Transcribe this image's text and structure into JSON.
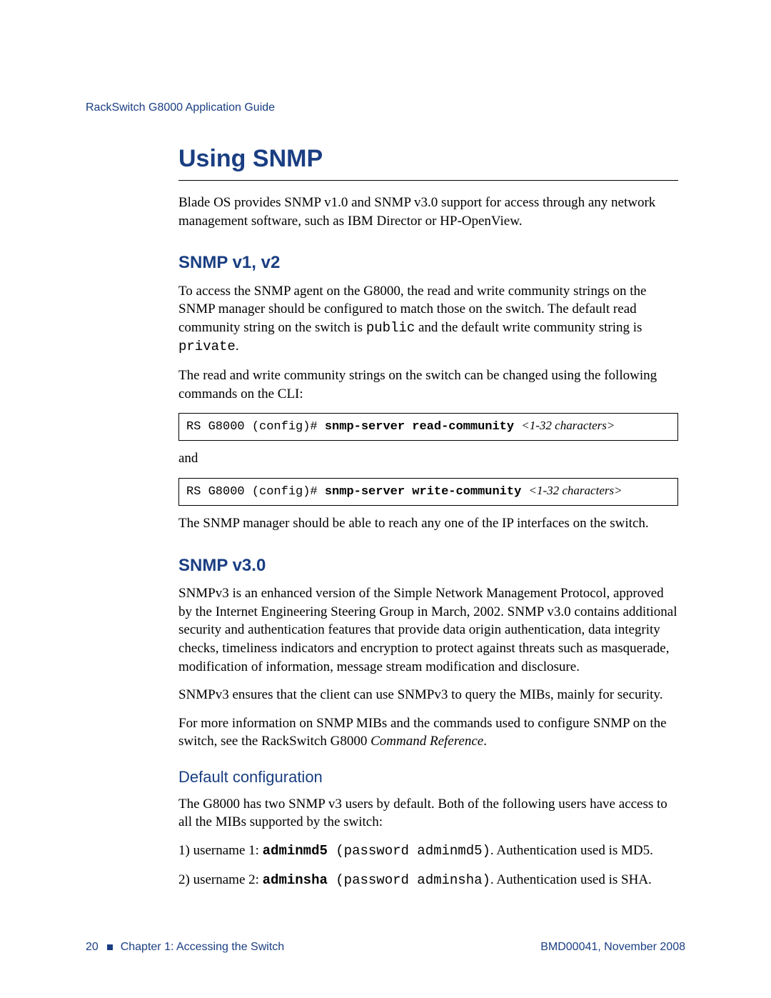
{
  "colors": {
    "brand_blue": "#1a3e82",
    "text": "#000000",
    "bg": "#ffffff",
    "rule": "#000000"
  },
  "typography": {
    "body_family": "Times New Roman",
    "heading_family": "Segoe UI / Myriad Pro",
    "mono_family": "Courier New",
    "body_size_pt": 11,
    "h1_size_pt": 20,
    "h2_size_pt": 14,
    "h3_size_pt": 13
  },
  "header": {
    "running": "RackSwitch G8000  Application Guide"
  },
  "title": "Using SNMP",
  "intro": "Blade OS provides SNMP v1.0 and SNMP v3.0 support for access through any network management software, such as IBM Director or HP-OpenView.",
  "snmp_v1v2": {
    "heading": "SNMP v1, v2",
    "p1_pre": "To access the SNMP agent on the G8000, the read and write community strings on the SNMP manager should be configured to match those on the switch. The default read community string on the switch is ",
    "p1_code1": "public",
    "p1_mid": " and the default write community string is ",
    "p1_code2": "private",
    "p1_post": ".",
    "p2": "The read and write community strings on the switch can be changed using the following commands on the CLI:",
    "code1_prompt": "RS G8000 (config)# ",
    "code1_cmd": "snmp-server read-community ",
    "code1_arg": "<1-32 characters>",
    "and": "and",
    "code2_prompt": "RS G8000 (config)# ",
    "code2_cmd": "snmp-server write-community ",
    "code2_arg": "<1-32 characters>",
    "p3": "The SNMP manager should be able to reach any one of the IP interfaces on the switch."
  },
  "snmp_v3": {
    "heading": "SNMP v3.0",
    "p1": "SNMPv3 is an enhanced version of the Simple Network Management Protocol, approved by the Internet Engineering Steering Group in March, 2002. SNMP v3.0 contains additional security and authentication features that provide data origin authentication, data integrity checks, timeliness indicators and encryption to protect against threats such as masquerade, modification of information, message stream modification and disclosure.",
    "p2": "SNMPv3 ensures that the client can use SNMPv3 to query the MIBs, mainly for security.",
    "p3_pre": "For more information on SNMP MIBs and the commands used to configure SNMP on the switch, see the RackSwitch G8000 ",
    "p3_italic": "Command Reference",
    "p3_post": ".",
    "sub_heading": "Default configuration",
    "sub_p1": "The G8000 has two SNMP v3 users by default. Both of the following users have access to all the MIBs supported by the switch:",
    "user1_pre": "1) username 1: ",
    "user1_name": "adminmd5",
    "user1_pass": " (password adminmd5)",
    "user1_post": ". Authentication used is MD5.",
    "user2_pre": "2) username 2: ",
    "user2_name": "adminsha",
    "user2_pass": " (password adminsha)",
    "user2_post": ". Authentication used is SHA."
  },
  "footer": {
    "page_number": "20",
    "chapter": "Chapter 1:  Accessing the Switch",
    "docid": "BMD00041, November 2008"
  }
}
